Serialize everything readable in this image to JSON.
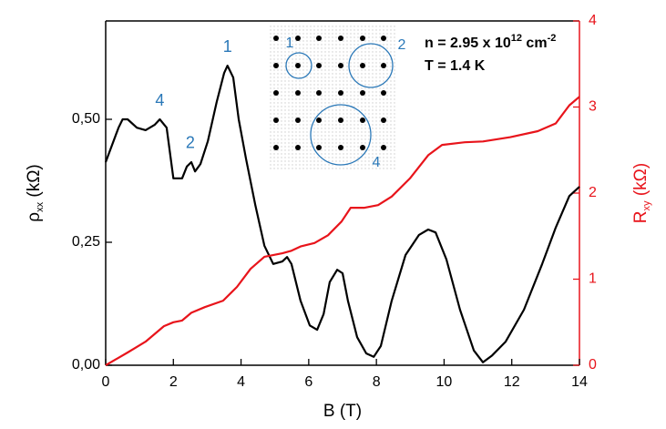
{
  "chart_data": {
    "type": "line",
    "xlabel": "B (T)",
    "ylabel": [
      "ρ",
      "xx",
      " (kΩ)"
    ],
    "y2label": [
      "R",
      "xy",
      " (kΩ)"
    ],
    "annotations": [
      [
        "n = 2.95 x 10",
        "12",
        " cm",
        "-2"
      ],
      [
        "T = 1.4 K"
      ]
    ],
    "peak_labels": [
      {
        "text": "1",
        "x": 3.6,
        "y": 0.609
      },
      {
        "text": "2",
        "x": 2.5,
        "y": 0.413
      },
      {
        "text": "4",
        "x": 1.6,
        "y": 0.5
      }
    ],
    "xlim": [
      0,
      14
    ],
    "xticks": [
      0,
      2,
      4,
      6,
      8,
      10,
      12,
      14
    ],
    "ylim": [
      0,
      0.7
    ],
    "yticks": [
      {
        "value": 0,
        "label": "0,00"
      },
      {
        "value": 0.25,
        "label": "0,25"
      },
      {
        "value": 0.5,
        "label": "0,50"
      }
    ],
    "y2lim": [
      0,
      4
    ],
    "y2ticks": [
      0,
      1,
      2,
      3,
      4
    ],
    "y2color": "#e8141b",
    "series": [
      {
        "color": "#000000",
        "axis": "y",
        "x": [
          0,
          0.38,
          0.5,
          0.65,
          0.92,
          1.18,
          1.45,
          1.6,
          1.8,
          2.0,
          2.26,
          2.4,
          2.53,
          2.64,
          2.8,
          3.02,
          3.28,
          3.5,
          3.6,
          3.77,
          3.93,
          4.15,
          4.42,
          4.69,
          4.95,
          5.22,
          5.36,
          5.49,
          5.76,
          6.03,
          6.25,
          6.44,
          6.62,
          6.84,
          7.0,
          7.16,
          7.43,
          7.7,
          7.92,
          8.13,
          8.45,
          8.86,
          9.26,
          9.53,
          9.75,
          10.07,
          10.47,
          10.88,
          11.15,
          11.42,
          11.82,
          12.36,
          12.9,
          13.3,
          13.7,
          14
        ],
        "values": [
          0.413,
          0.483,
          0.5,
          0.5,
          0.483,
          0.478,
          0.489,
          0.5,
          0.483,
          0.38,
          0.38,
          0.404,
          0.413,
          0.394,
          0.409,
          0.456,
          0.535,
          0.594,
          0.609,
          0.585,
          0.5,
          0.419,
          0.326,
          0.243,
          0.206,
          0.211,
          0.22,
          0.206,
          0.131,
          0.081,
          0.072,
          0.104,
          0.169,
          0.194,
          0.187,
          0.131,
          0.057,
          0.024,
          0.017,
          0.039,
          0.131,
          0.224,
          0.265,
          0.276,
          0.27,
          0.215,
          0.113,
          0.03,
          0.006,
          0.02,
          0.048,
          0.113,
          0.206,
          0.28,
          0.344,
          0.363
        ]
      },
      {
        "color": "#e8141b",
        "axis": "y2",
        "x": [
          0,
          0.65,
          1.18,
          1.72,
          2.0,
          2.26,
          2.53,
          2.93,
          3.47,
          3.88,
          4.28,
          4.69,
          5.22,
          5.49,
          5.76,
          6.17,
          6.57,
          6.97,
          7.24,
          7.65,
          8.05,
          8.45,
          8.99,
          9.53,
          9.94,
          10.61,
          11.15,
          11.96,
          12.77,
          13.3,
          13.7,
          14
        ],
        "values": [
          0,
          0.148,
          0.274,
          0.454,
          0.5,
          0.52,
          0.61,
          0.675,
          0.75,
          0.91,
          1.12,
          1.26,
          1.3,
          1.33,
          1.38,
          1.42,
          1.51,
          1.67,
          1.83,
          1.83,
          1.86,
          1.96,
          2.17,
          2.44,
          2.56,
          2.59,
          2.6,
          2.65,
          2.72,
          2.81,
          3.02,
          3.12
        ]
      }
    ]
  },
  "inset": {
    "labels": [
      "1",
      "2",
      "4"
    ]
  }
}
